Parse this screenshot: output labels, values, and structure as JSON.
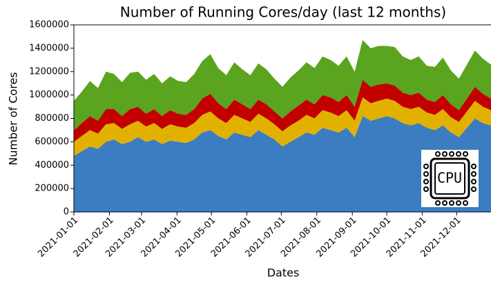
{
  "chart_data": {
    "type": "stacked_area",
    "title": "Number of Running Cores/day (last 12 months)",
    "xlabel": "Dates",
    "ylabel": "Number of Cores",
    "icon_label": "CPU",
    "x": [
      "2021-01-01",
      "2021-01-08",
      "2021-01-15",
      "2021-01-22",
      "2021-01-29",
      "2021-02-05",
      "2021-02-12",
      "2021-02-19",
      "2021-02-26",
      "2021-03-05",
      "2021-03-12",
      "2021-03-19",
      "2021-03-26",
      "2021-04-02",
      "2021-04-09",
      "2021-04-16",
      "2021-04-23",
      "2021-04-30",
      "2021-05-07",
      "2021-05-14",
      "2021-05-21",
      "2021-05-28",
      "2021-06-04",
      "2021-06-11",
      "2021-06-18",
      "2021-06-25",
      "2021-07-02",
      "2021-07-09",
      "2021-07-16",
      "2021-07-23",
      "2021-07-30",
      "2021-08-06",
      "2021-08-13",
      "2021-08-20",
      "2021-08-27",
      "2021-09-03",
      "2021-09-10",
      "2021-09-17",
      "2021-09-24",
      "2021-10-01",
      "2021-10-08",
      "2021-10-15",
      "2021-10-22",
      "2021-10-29",
      "2021-11-05",
      "2021-11-12",
      "2021-11-19",
      "2021-11-26",
      "2021-12-03",
      "2021-12-10",
      "2021-12-17",
      "2021-12-24",
      "2021-12-31"
    ],
    "series": [
      {
        "name": "blue",
        "color": "#3b7dc0",
        "values": [
          480000,
          520000,
          560000,
          540000,
          600000,
          620000,
          580000,
          600000,
          640000,
          600000,
          620000,
          580000,
          610000,
          600000,
          590000,
          620000,
          680000,
          700000,
          650000,
          620000,
          680000,
          660000,
          640000,
          700000,
          660000,
          620000,
          560000,
          600000,
          640000,
          680000,
          660000,
          720000,
          700000,
          680000,
          720000,
          640000,
          820000,
          780000,
          800000,
          820000,
          800000,
          760000,
          740000,
          760000,
          720000,
          700000,
          740000,
          680000,
          640000,
          720000,
          800000,
          760000,
          740000
        ]
      },
      {
        "name": "yellow",
        "color": "#e2b100",
        "values": [
          120000,
          130000,
          140000,
          130000,
          150000,
          140000,
          130000,
          150000,
          140000,
          130000,
          140000,
          130000,
          140000,
          130000,
          130000,
          140000,
          150000,
          160000,
          150000,
          140000,
          150000,
          140000,
          130000,
          140000,
          140000,
          130000,
          130000,
          140000,
          140000,
          150000,
          140000,
          150000,
          150000,
          140000,
          150000,
          140000,
          160000,
          150000,
          150000,
          150000,
          150000,
          140000,
          140000,
          140000,
          130000,
          130000,
          140000,
          130000,
          130000,
          140000,
          150000,
          140000,
          130000
        ]
      },
      {
        "name": "red",
        "color": "#c20000",
        "values": [
          100000,
          110000,
          120000,
          110000,
          130000,
          120000,
          110000,
          130000,
          120000,
          110000,
          120000,
          110000,
          120000,
          110000,
          110000,
          120000,
          140000,
          150000,
          130000,
          120000,
          130000,
          120000,
          110000,
          120000,
          120000,
          110000,
          110000,
          120000,
          130000,
          130000,
          120000,
          130000,
          130000,
          120000,
          130000,
          120000,
          150000,
          140000,
          140000,
          130000,
          130000,
          120000,
          120000,
          120000,
          110000,
          110000,
          120000,
          110000,
          100000,
          110000,
          120000,
          110000,
          100000
        ]
      },
      {
        "name": "green",
        "color": "#5aa41f",
        "values": [
          250000,
          270000,
          300000,
          280000,
          320000,
          300000,
          290000,
          310000,
          300000,
          290000,
          300000,
          280000,
          290000,
          280000,
          280000,
          300000,
          320000,
          340000,
          300000,
          290000,
          320000,
          300000,
          290000,
          310000,
          300000,
          280000,
          270000,
          290000,
          300000,
          320000,
          310000,
          330000,
          320000,
          310000,
          330000,
          300000,
          340000,
          330000,
          330000,
          320000,
          330000,
          310000,
          300000,
          310000,
          290000,
          300000,
          320000,
          290000,
          270000,
          290000,
          310000,
          300000,
          290000
        ]
      }
    ],
    "xlim": [
      "2021-01-01",
      "2021-12-31"
    ],
    "xticks": [
      "2021-01-01",
      "2021-02-01",
      "2021-03-01",
      "2021-04-01",
      "2021-05-01",
      "2021-06-01",
      "2021-07-01",
      "2021-08-01",
      "2021-09-01",
      "2021-10-01",
      "2021-11-01",
      "2021-12-01"
    ],
    "ylim": [
      0,
      1600000
    ],
    "yticks": [
      0,
      200000,
      400000,
      600000,
      800000,
      1000000,
      1200000,
      1400000,
      1600000
    ]
  }
}
